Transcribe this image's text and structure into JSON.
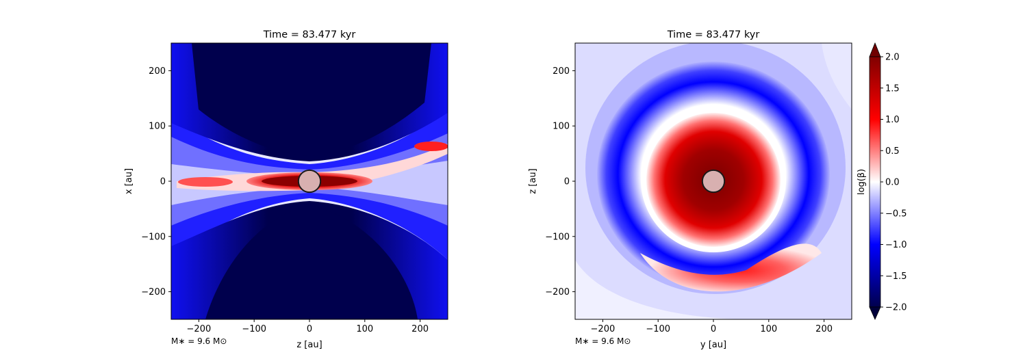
{
  "chart_data": [
    {
      "type": "heatmap",
      "title": "Time = 83.477 kyr",
      "xlabel": "z [au]",
      "ylabel": "x [au]",
      "xlim": [
        -250,
        250
      ],
      "ylim": [
        -250,
        250
      ],
      "xticks": [
        -200,
        -100,
        0,
        100,
        200
      ],
      "yticks": [
        -200,
        -100,
        0,
        100,
        200
      ],
      "xtick_labels": [
        "−200",
        "−100",
        "0",
        "100",
        "200"
      ],
      "ytick_labels": [
        "−200",
        "−100",
        "0",
        "100",
        "200"
      ],
      "annotation": "M∗ = 9.6 M⊙",
      "star": {
        "x": 0,
        "y": 0,
        "radius": 20
      },
      "field": "log(β) edge-on: thin high-β disk along z near x=0, low-β (−2) outflow cones above and below, blue (≈−1) cavity walls"
    },
    {
      "type": "heatmap",
      "title": "Time = 83.477 kyr",
      "xlabel": "y [au]",
      "ylabel": "z [au]",
      "xlim": [
        -250,
        250
      ],
      "ylim": [
        -250,
        250
      ],
      "xticks": [
        -200,
        -100,
        0,
        100,
        200
      ],
      "yticks": [
        -200,
        -100,
        0,
        100,
        200
      ],
      "xtick_labels": [
        "−200",
        "−100",
        "0",
        "100",
        "200"
      ],
      "ytick_labels": [
        "−200",
        "−100",
        "0",
        "100",
        "200"
      ],
      "annotation": "M∗ = 9.6 M⊙",
      "star": {
        "x": 0,
        "y": 0,
        "radius": 20
      },
      "field": "log(β) face-on: central high-β disk (≈2) out to r≈120 au, blue ring (≈−1) near r≈160 au, red arc below center near y≈30, z≈−190"
    }
  ],
  "colorbar": {
    "label": "log(β)",
    "min": -2.0,
    "max": 2.0,
    "ticks": [
      -2.0,
      -1.5,
      -1.0,
      -0.5,
      0.0,
      0.5,
      1.0,
      1.5,
      2.0
    ],
    "tick_labels": [
      "−2.0",
      "−1.5",
      "−1.0",
      "−0.5",
      "0.0",
      "0.5",
      "1.0",
      "1.5",
      "2.0"
    ],
    "extend": "both",
    "colormap": "seismic",
    "colors": {
      "low": "#00004d",
      "mid_low": "#0000ff",
      "center": "#ffffff",
      "mid_high": "#ff0000",
      "high": "#800000"
    }
  },
  "colors": {
    "star_fill": "#d8b0b0",
    "star_edge": "#1a1a1a"
  }
}
